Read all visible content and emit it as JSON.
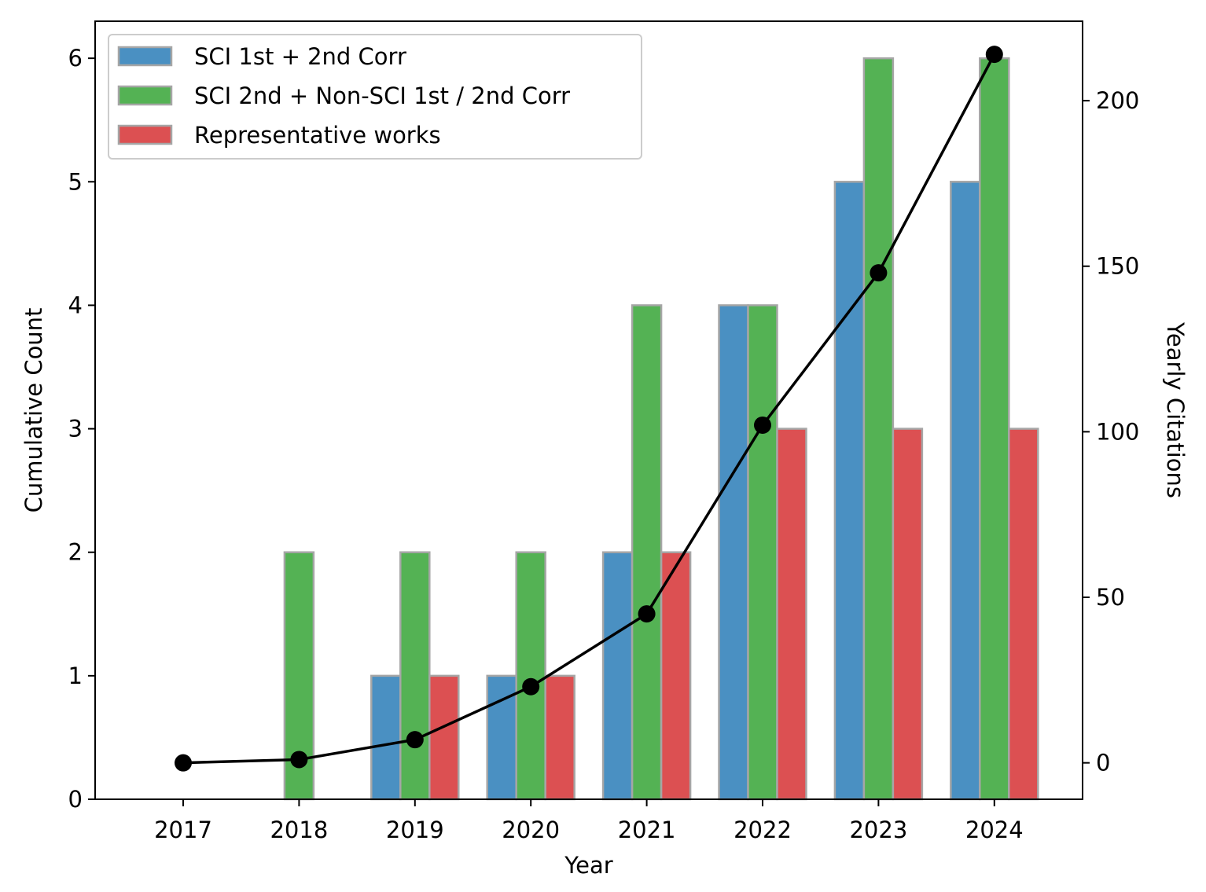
{
  "chart_data": {
    "type": "bar",
    "categories": [
      "2017",
      "2018",
      "2019",
      "2020",
      "2021",
      "2022",
      "2023",
      "2024"
    ],
    "xlabel": "Year",
    "ylabel": "Cumulative Count",
    "ylim": [
      0,
      6.3
    ],
    "yticks": [
      "0",
      "1",
      "2",
      "3",
      "4",
      "5",
      "6"
    ],
    "y2label": "Yearly Citations",
    "y2lim": [
      -11,
      224
    ],
    "y2ticks": [
      "0",
      "50",
      "100",
      "150",
      "200"
    ],
    "series": [
      {
        "name": "SCI 1st + 2nd Corr",
        "color": "#4a90c2",
        "values": [
          0,
          0,
          1,
          1,
          2,
          4,
          5,
          5
        ]
      },
      {
        "name": "SCI 2nd + Non-SCI 1st / 2nd Corr",
        "color": "#54b254",
        "values": [
          0,
          2,
          2,
          2,
          4,
          4,
          6,
          6
        ]
      },
      {
        "name": "Representative works",
        "color": "#dc5052",
        "values": [
          0,
          0,
          1,
          1,
          2,
          3,
          3,
          3
        ]
      }
    ],
    "line_series": {
      "axis": "right",
      "color": "#000000",
      "values": [
        0,
        1,
        7,
        23,
        45,
        102,
        148,
        214
      ]
    },
    "legend_position": "top-left",
    "grid": false
  }
}
